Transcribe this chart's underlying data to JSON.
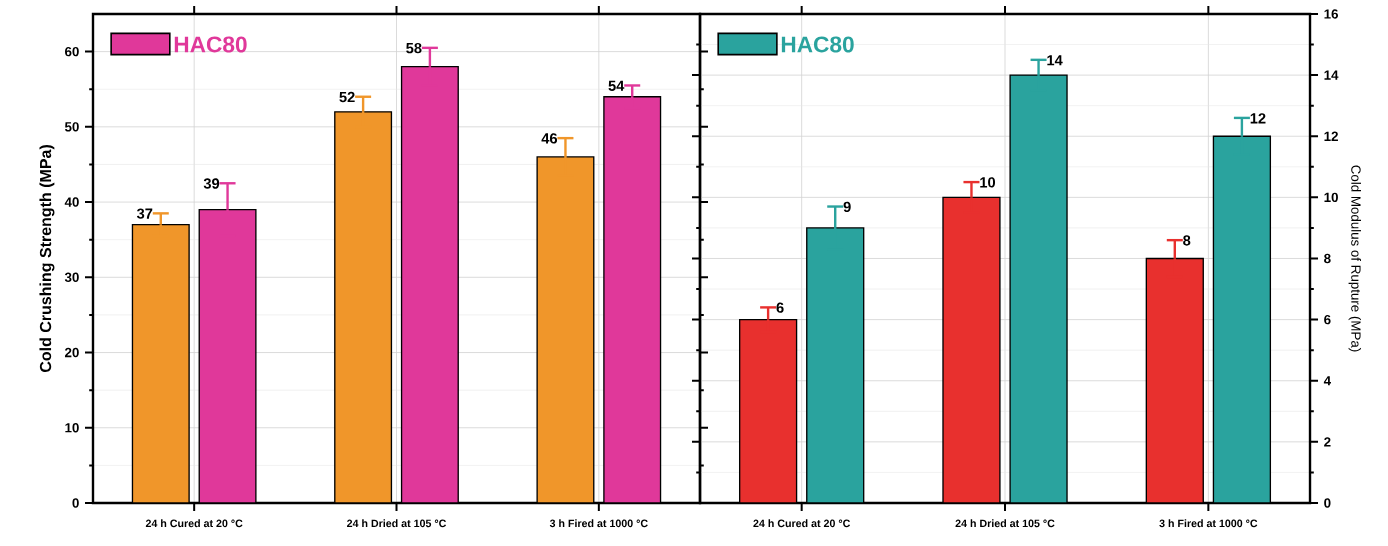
{
  "chart_data": [
    {
      "type": "bar",
      "ylabel": "Cold Crushing Strength (MPa)",
      "categories": [
        "24 h Cured at 20 °C",
        "24 h Dried at 105 °C",
        "3 h Fired at 1000 °C"
      ],
      "series": [
        {
          "color": "#f0962a",
          "values": [
            37,
            52,
            46
          ],
          "errors": [
            1.5,
            2,
            2.5
          ],
          "value_labels": [
            "37",
            "52",
            "46"
          ]
        },
        {
          "name": "HAC80",
          "color": "#e0389a",
          "values": [
            39,
            58,
            54
          ],
          "errors": [
            3.5,
            2.5,
            1.5
          ],
          "value_labels": [
            "39",
            "58",
            "54"
          ]
        }
      ],
      "ylim": [
        0,
        65
      ],
      "yticks": [
        0,
        10,
        20,
        30,
        40,
        50,
        60
      ],
      "grid": true,
      "legend": "top left"
    },
    {
      "type": "bar",
      "ylabel": "Cold Modulus of Rupture (MPa)",
      "categories": [
        "24 h Cured at 20 °C",
        "24 h Dried at 105 °C",
        "3 h Fired at 1000 °C"
      ],
      "series": [
        {
          "color": "#e8302e",
          "values": [
            6,
            10,
            8
          ],
          "errors": [
            0.4,
            0.5,
            0.6
          ],
          "value_labels": [
            "6",
            "10",
            "8"
          ]
        },
        {
          "name": "HAC80",
          "color": "#2aa39e",
          "values": [
            9,
            14,
            12
          ],
          "errors": [
            0.7,
            0.5,
            0.6
          ],
          "value_labels": [
            "9",
            "14",
            "12"
          ]
        }
      ],
      "ylim": [
        0,
        16
      ],
      "yticks": [
        0,
        2,
        4,
        6,
        8,
        10,
        12,
        14,
        16
      ],
      "grid": true,
      "legend": "top left"
    }
  ]
}
